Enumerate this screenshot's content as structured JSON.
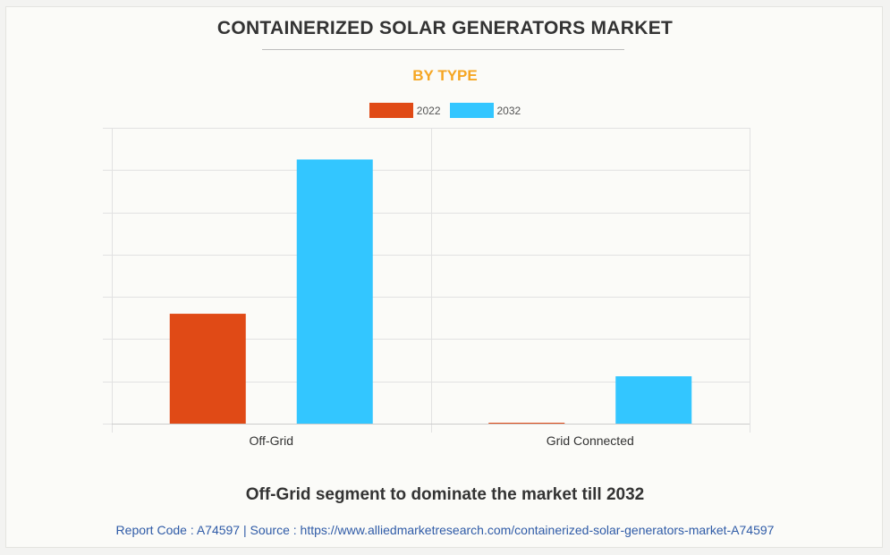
{
  "title": "CONTAINERIZED SOLAR GENERATORS MARKET",
  "subtitle": "BY TYPE",
  "caption": "Off-Grid segment to dominate the market till 2032",
  "source_line": "Report Code : A74597  |  Source : https://www.alliedmarketresearch.com/containerized-solar-generators-market-A74597",
  "colors": {
    "series_2022": "#e04a16",
    "series_2032": "#33c6ff",
    "title": "#333333",
    "subtitle": "#f5a623",
    "source": "#2f5ba7"
  },
  "chart_data": {
    "type": "bar",
    "title": "CONTAINERIZED SOLAR GENERATORS MARKET",
    "subtitle": "BY TYPE",
    "categories": [
      "Off-Grid",
      "Grid Connected"
    ],
    "series": [
      {
        "name": "2022",
        "values": [
          2.6,
          0.02
        ]
      },
      {
        "name": "2032",
        "values": [
          6.25,
          1.12
        ]
      }
    ],
    "ylim": [
      0,
      7
    ],
    "y_gridlines": 7,
    "xlabel": "",
    "ylabel": "",
    "legend_position": "top-center",
    "grid": true
  }
}
